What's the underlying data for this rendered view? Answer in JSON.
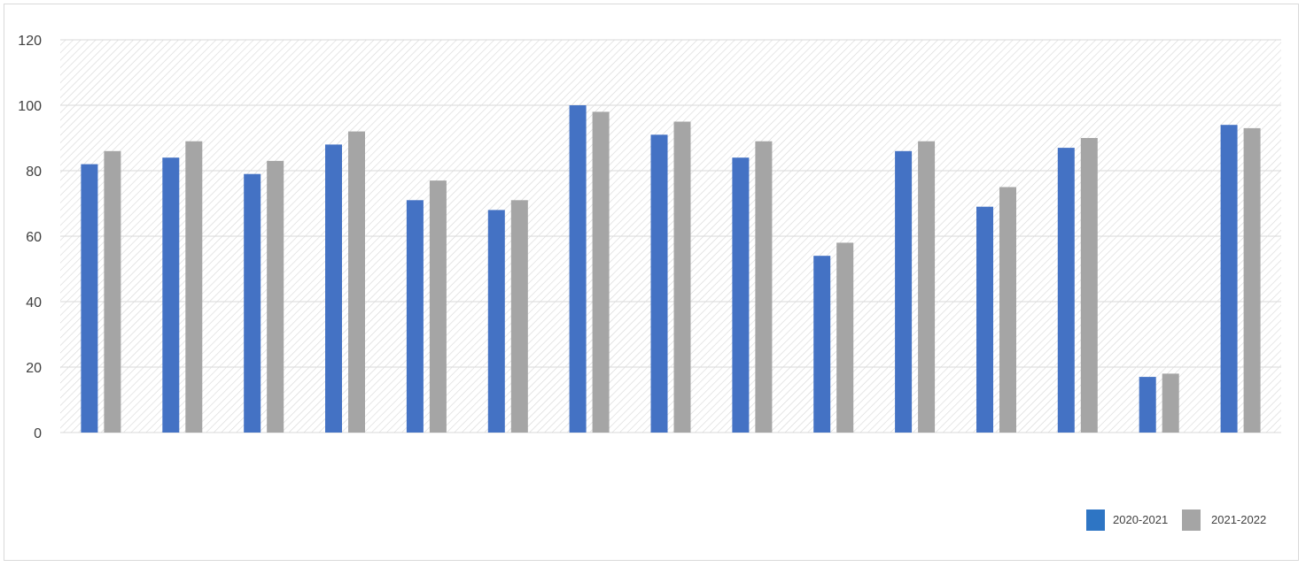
{
  "chart_data": {
    "type": "bar",
    "categories": [
      "",
      "",
      "",
      "",
      "",
      "",
      "",
      "",
      "",
      "",
      "",
      "",
      "",
      "",
      ""
    ],
    "series": [
      {
        "name": "2020-2021",
        "color": "#4472c4",
        "values": [
          82,
          84,
          79,
          88,
          71,
          68,
          100,
          91,
          84,
          54,
          86,
          69,
          87,
          17,
          94
        ]
      },
      {
        "name": "2021-2022",
        "color": "#a5a5a5",
        "values": [
          86,
          89,
          83,
          92,
          77,
          71,
          98,
          95,
          89,
          58,
          89,
          75,
          90,
          18,
          93
        ]
      }
    ],
    "ylim": [
      0,
      120
    ],
    "yticks": [
      "0",
      "20",
      "40",
      "60",
      "80",
      "100",
      "120"
    ],
    "grid": true,
    "legend": "bottom-right",
    "title": "",
    "xlabel": "",
    "ylabel": ""
  },
  "legend": {
    "items": [
      {
        "label": "2020-2021",
        "color": "#2e75c4"
      },
      {
        "label": "2021-2022",
        "color": "#a5a5a5"
      }
    ]
  }
}
